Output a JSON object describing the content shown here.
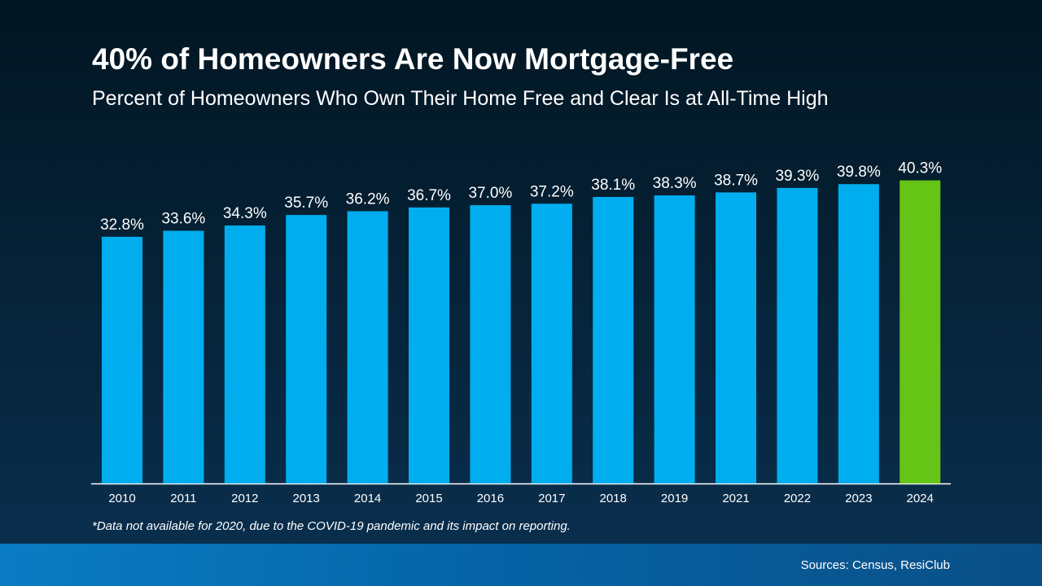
{
  "chart_data": {
    "type": "bar",
    "title": "40% of Homeowners Are Now Mortgage-Free",
    "subtitle": "Percent of Homeowners Who Own Their Home Free and Clear Is at All-Time High",
    "categories": [
      "2010",
      "2011",
      "2012",
      "2013",
      "2014",
      "2015",
      "2016",
      "2017",
      "2018",
      "2019",
      "2021",
      "2022",
      "2023",
      "2024"
    ],
    "values": [
      32.8,
      33.6,
      34.3,
      35.7,
      36.2,
      36.7,
      37.0,
      37.2,
      38.1,
      38.3,
      38.7,
      39.3,
      39.8,
      40.3
    ],
    "value_labels": [
      "32.8%",
      "33.6%",
      "34.3%",
      "35.7%",
      "36.2%",
      "36.7%",
      "37.0%",
      "37.2%",
      "38.1%",
      "38.3%",
      "38.7%",
      "39.3%",
      "39.8%",
      "40.3%"
    ],
    "colors": [
      "#00aeef",
      "#00aeef",
      "#00aeef",
      "#00aeef",
      "#00aeef",
      "#00aeef",
      "#00aeef",
      "#00aeef",
      "#00aeef",
      "#00aeef",
      "#00aeef",
      "#00aeef",
      "#00aeef",
      "#66c417"
    ],
    "footnote": "*Data not available for 2020, due to the COVID-19 pandemic and its impact on reporting.",
    "source": "Sources: Census, ResiClub"
  }
}
